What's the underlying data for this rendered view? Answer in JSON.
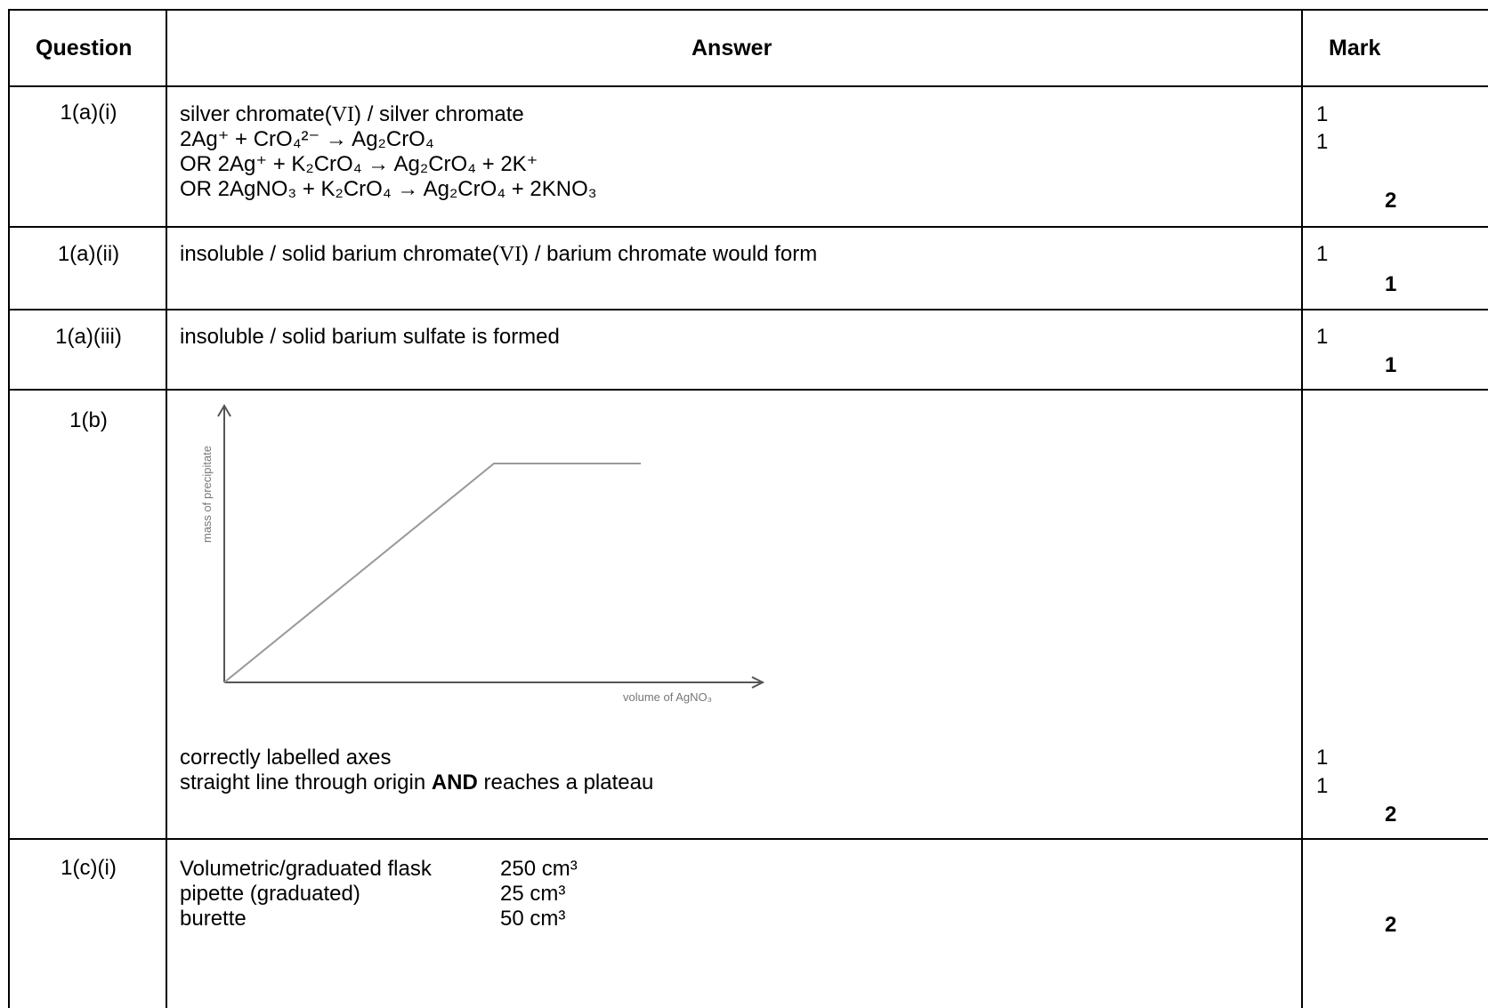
{
  "header": {
    "question": "Question",
    "answer": "Answer",
    "mark": "Mark"
  },
  "rows": [
    {
      "question": "1(a)(i)",
      "lines": {
        "l1_a": "silver chromate(",
        "l1_roman": "VI",
        "l1_b": ") / silver chromate",
        "l2": "2Ag⁺ + CrO₄²⁻ → Ag₂CrO₄",
        "l3": "OR 2Ag⁺ + K₂CrO₄ → Ag₂CrO₄ + 2K⁺",
        "l4": "OR 2AgNO₃ + K₂CrO₄ → Ag₂CrO₄ + 2KNO₃"
      },
      "marks": [
        "1",
        "1"
      ],
      "total": "2"
    },
    {
      "question": "1(a)(ii)",
      "lines": {
        "l1_a": "insoluble / solid barium chromate(",
        "l1_roman": "VI",
        "l1_b": ") / barium chromate would form"
      },
      "marks": [
        "1"
      ],
      "total": "1"
    },
    {
      "question": "1(a)(iii)",
      "lines": {
        "l1": "insoluble / solid barium sulfate is formed"
      },
      "marks": [
        "1"
      ],
      "total": "1"
    },
    {
      "question": "1(b)",
      "lines": {
        "l1": "correctly labelled axes",
        "l2_a": "straight line through origin ",
        "l2_bold": "AND",
        "l2_b": " reaches a plateau"
      },
      "marks": [
        "1",
        "1"
      ],
      "total": "2"
    },
    {
      "question": "1(c)(i)",
      "apparatus": [
        {
          "name": "Volumetric/graduated flask",
          "volume": "250 cm³"
        },
        {
          "name": "pipette (graduated)",
          "volume": "25 cm³"
        },
        {
          "name": "burette",
          "volume": "50 cm³"
        }
      ],
      "total": "2"
    }
  ],
  "sketch": {
    "ylabel": "mass of precipitate",
    "xlabel": "volume of AgNO₃"
  }
}
